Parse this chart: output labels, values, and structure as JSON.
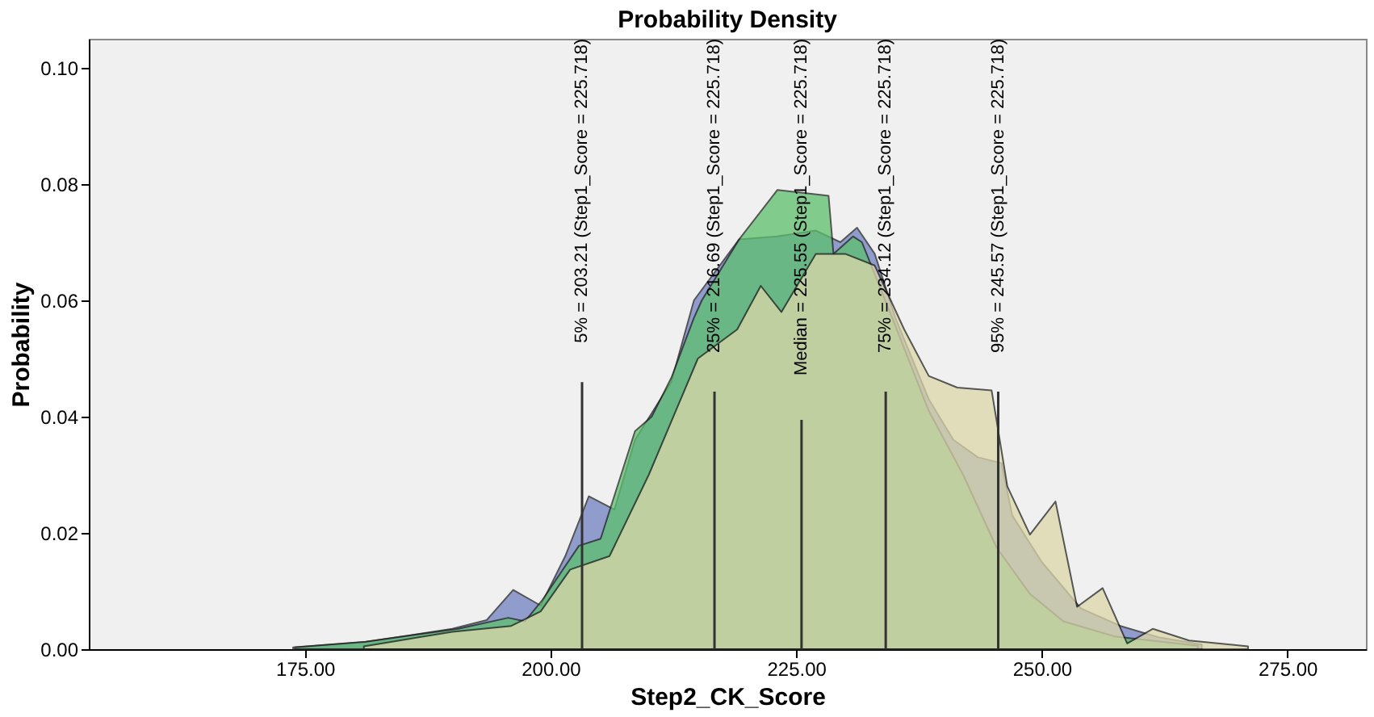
{
  "chart_data": {
    "type": "area",
    "title": "Probability Density",
    "xlabel": "Step2_CK_Score",
    "ylabel": "Probability",
    "xlim": [
      153,
      283
    ],
    "ylim": [
      0,
      0.105
    ],
    "xticks": [
      {
        "value": 175,
        "label": "175.00"
      },
      {
        "value": 200,
        "label": "200.00"
      },
      {
        "value": 225,
        "label": "225.00"
      },
      {
        "value": 250,
        "label": "250.00"
      },
      {
        "value": 275,
        "label": "275.00"
      }
    ],
    "yticks": [
      {
        "value": 0,
        "label": "0.00"
      },
      {
        "value": 0.02,
        "label": "0.02"
      },
      {
        "value": 0.04,
        "label": "0.04"
      },
      {
        "value": 0.06,
        "label": "0.06"
      },
      {
        "value": 0.08,
        "label": "0.08"
      },
      {
        "value": 0.1,
        "label": "0.10"
      }
    ],
    "grid": false,
    "series": [
      {
        "color": "#6f80c0",
        "x": [
          174,
          181,
          190,
          193.5,
          196.2,
          199,
          201.5,
          203.9,
          206.5,
          208.6,
          212.3,
          214.6,
          219.2,
          223.1,
          227,
          229.5,
          231.2,
          233,
          235.1,
          238.5,
          241,
          243.5,
          245.9,
          247,
          250,
          254,
          258,
          262,
          266.3
        ],
        "values": [
          0.0003,
          0.0012,
          0.0035,
          0.005,
          0.0102,
          0.0075,
          0.016,
          0.0263,
          0.024,
          0.036,
          0.046,
          0.06,
          0.0705,
          0.071,
          0.072,
          0.07,
          0.0725,
          0.068,
          0.057,
          0.043,
          0.036,
          0.033,
          0.032,
          0.023,
          0.015,
          0.007,
          0.004,
          0.002,
          0.0008
        ]
      },
      {
        "color": "#5cc06c",
        "x": [
          173.8,
          181.2,
          190.6,
          195.7,
          197.4,
          199.1,
          202.9,
          205.1,
          208.6,
          210.3,
          212.3,
          214.6,
          215.4,
          219.2,
          223.1,
          228.3,
          228.8,
          230.8,
          231.7,
          235.1,
          238.5,
          242,
          245.4,
          248.8,
          252.2,
          257.4,
          265.9
        ],
        "values": [
          0.0003,
          0.0013,
          0.0035,
          0.0054,
          0.0048,
          0.0083,
          0.0178,
          0.019,
          0.0375,
          0.04,
          0.0467,
          0.057,
          0.06,
          0.0705,
          0.079,
          0.078,
          0.068,
          0.071,
          0.07,
          0.0556,
          0.041,
          0.03,
          0.0175,
          0.0095,
          0.0048,
          0.0022,
          0.0006
        ]
      },
      {
        "color": "#dcd7a8",
        "x": [
          181,
          190,
          196,
          199,
          202,
          206,
          210,
          215,
          219,
          221.4,
          223.5,
          227,
          230,
          233,
          236,
          238.5,
          241.4,
          244.9,
          246.5,
          248.8,
          251.4,
          253.6,
          256.2,
          258.7,
          261.3,
          265,
          271
        ],
        "values": [
          0.0005,
          0.003,
          0.004,
          0.0065,
          0.0137,
          0.016,
          0.03,
          0.05,
          0.055,
          0.0625,
          0.058,
          0.068,
          0.068,
          0.066,
          0.055,
          0.047,
          0.045,
          0.0445,
          0.028,
          0.0197,
          0.0254,
          0.0073,
          0.0105,
          0.001,
          0.0035,
          0.0015,
          0.0005
        ]
      }
    ],
    "ref_lines": [
      {
        "axis": "x",
        "value": 203.21,
        "label": "5% = 203.21 (Step1_Score = 225.718)"
      },
      {
        "axis": "x",
        "value": 216.69,
        "label": "25% = 216.69 (Step1_Score = 225.718)"
      },
      {
        "axis": "x",
        "value": 225.55,
        "label": "Median = 225.55 (Step1_Score = 225.718)"
      },
      {
        "axis": "x",
        "value": 234.12,
        "label": "75% = 234.12 (Step1_Score = 225.718)"
      },
      {
        "axis": "x",
        "value": 245.57,
        "label": "95% = 245.57 (Step1_Score = 225.718)"
      }
    ]
  }
}
